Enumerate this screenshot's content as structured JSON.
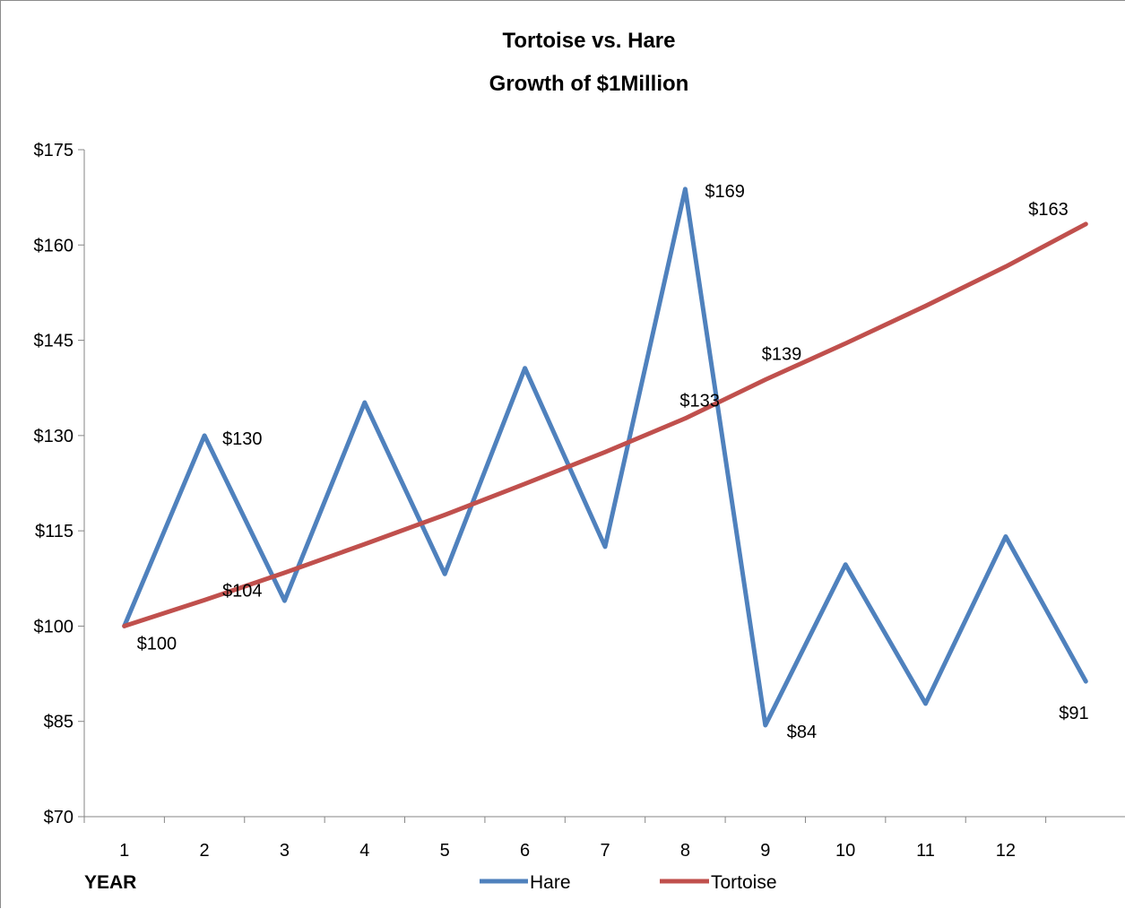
{
  "chart_data": {
    "type": "line",
    "title": [
      "Tortoise vs. Hare",
      "Growth of $1Million"
    ],
    "xlabel": "YEAR",
    "ylabel": "",
    "categories": [
      "1",
      "2",
      "3",
      "4",
      "5",
      "6",
      "7",
      "8",
      "9",
      "10",
      "11",
      "12",
      ""
    ],
    "ylim": [
      70,
      175
    ],
    "yticks": [
      70,
      85,
      100,
      115,
      130,
      145,
      160,
      175
    ],
    "ytick_labels": [
      "$70",
      "$85",
      "$100",
      "$115",
      "$130",
      "$145",
      "$160",
      "$175"
    ],
    "grid": false,
    "legend_position": "bottom",
    "series": [
      {
        "name": "Hare",
        "color": "#4f81bd",
        "values": [
          100,
          130,
          104,
          135.2,
          108.2,
          140.6,
          112.5,
          168.8,
          84.4,
          109.7,
          87.8,
          114.1,
          91.3
        ],
        "labels": [
          {
            "index": 1,
            "text": "$130"
          },
          {
            "index": 7,
            "text": "$169"
          },
          {
            "index": 8,
            "text": "$84"
          },
          {
            "index": 12,
            "text": "$91"
          }
        ]
      },
      {
        "name": "Tortoise",
        "color": "#c0504d",
        "values": [
          100,
          104.1,
          108.4,
          112.9,
          117.5,
          122.4,
          127.4,
          132.7,
          138.8,
          144.5,
          150.4,
          156.6,
          163.3
        ],
        "labels": [
          {
            "index": 0,
            "text": "$100"
          },
          {
            "index": 1,
            "text": "$104"
          },
          {
            "index": 7,
            "text": "$133"
          },
          {
            "index": 8,
            "text": "$139"
          },
          {
            "index": 12,
            "text": "$163"
          }
        ]
      }
    ]
  }
}
